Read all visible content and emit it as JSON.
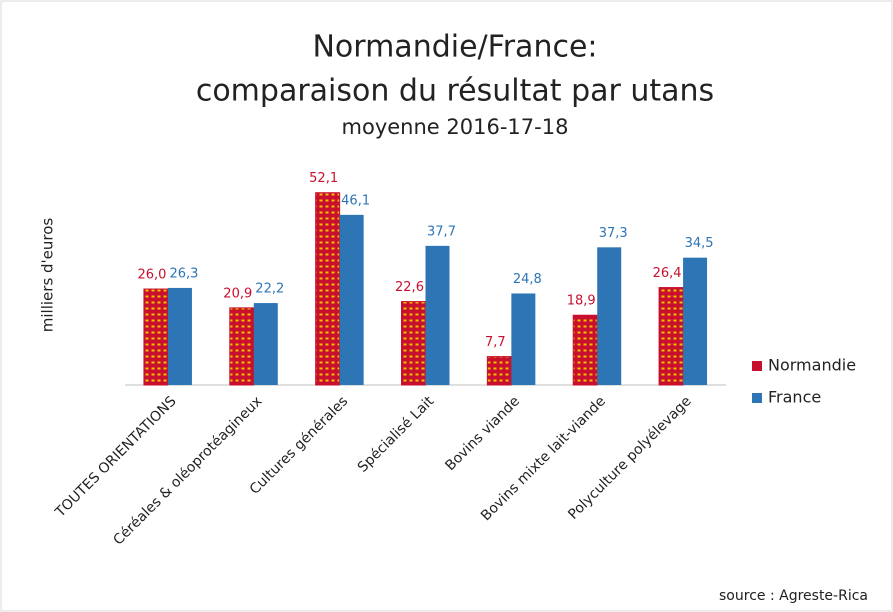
{
  "chart_data": {
    "type": "bar",
    "title": [
      "Normandie/France:",
      "comparaison du résultat par utans"
    ],
    "subtitle": "moyenne 2016-17-18",
    "y_label": "milliers d'euros",
    "source": "source : Agreste-Rica",
    "categories": [
      "TOUTES ORIENTATIONS",
      "Céréales & oléoprotéagineux",
      "Cultures générales",
      "Spécialisé Lait",
      "Bovins viande",
      "Bovins mixte lait-viande",
      "Polyculture polyélevage"
    ],
    "series": [
      {
        "name": "Normandie",
        "color": "#c8102e",
        "values": [
          26.0,
          20.9,
          52.1,
          22.6,
          7.7,
          18.9,
          26.4
        ],
        "value_labels": [
          "26,0",
          "20,9",
          "52,1",
          "22,6",
          "7,7",
          "18,9",
          "26,4"
        ]
      },
      {
        "name": "France",
        "color": "#2e75b6",
        "values": [
          26.3,
          22.2,
          46.1,
          37.7,
          24.8,
          37.3,
          34.5
        ],
        "value_labels": [
          "26,3",
          "22,2",
          "46,1",
          "37,7",
          "24,8",
          "37,3",
          "34,5"
        ]
      }
    ],
    "ylim": [
      0,
      55
    ],
    "legend": "right"
  }
}
